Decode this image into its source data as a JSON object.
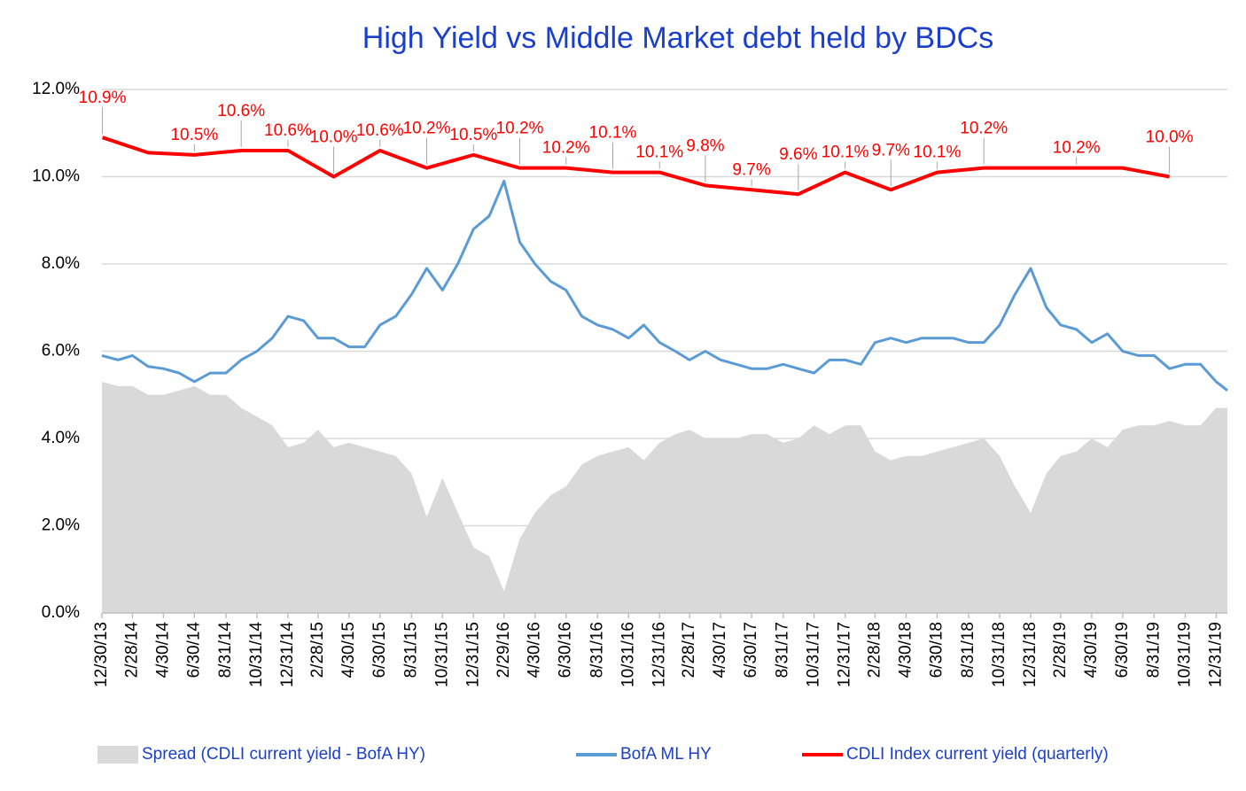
{
  "chart_data": {
    "type": "line",
    "title": "High Yield  vs  Middle Market debt held by BDCs",
    "x": [
      "12/30/13",
      "1/31/14",
      "2/28/14",
      "3/31/14",
      "4/30/14",
      "5/31/14",
      "6/30/14",
      "7/31/14",
      "8/31/14",
      "9/30/14",
      "10/31/14",
      "11/30/14",
      "12/31/14",
      "1/31/15",
      "2/28/15",
      "3/31/15",
      "4/30/15",
      "5/31/15",
      "6/30/15",
      "7/31/15",
      "8/31/15",
      "9/30/15",
      "10/31/15",
      "11/30/15",
      "12/31/15",
      "1/31/16",
      "2/29/16",
      "3/31/16",
      "4/30/16",
      "5/31/16",
      "6/30/16",
      "7/31/16",
      "8/31/16",
      "9/30/16",
      "10/31/16",
      "11/30/16",
      "12/31/16",
      "1/31/17",
      "2/28/17",
      "3/31/17",
      "4/30/17",
      "5/31/17",
      "6/30/17",
      "7/31/17",
      "8/31/17",
      "9/30/17",
      "10/31/17",
      "11/30/17",
      "12/31/17",
      "1/31/18",
      "2/28/18",
      "3/31/18",
      "4/30/18",
      "5/31/18",
      "6/30/18",
      "7/31/18",
      "8/31/18",
      "9/30/18",
      "10/31/18",
      "11/30/18",
      "12/31/18",
      "1/31/19",
      "2/28/19",
      "3/31/19",
      "4/30/19",
      "5/31/19",
      "6/30/19",
      "7/31/19",
      "8/31/19",
      "9/30/19",
      "10/31/19",
      "11/30/19",
      "12/31/19",
      "1/22/20"
    ],
    "series": [
      {
        "name": "Spread (CDLI current yield - BofA HY)",
        "type": "area",
        "color": "#d9d9d9",
        "values": [
          5.3,
          5.2,
          5.2,
          5.0,
          5.0,
          5.1,
          5.2,
          5.0,
          5.0,
          4.7,
          4.5,
          4.3,
          3.8,
          3.9,
          4.2,
          3.8,
          3.9,
          3.8,
          3.7,
          3.6,
          3.2,
          2.2,
          3.1,
          2.3,
          1.5,
          1.3,
          0.5,
          1.7,
          2.3,
          2.7,
          2.9,
          3.4,
          3.6,
          3.7,
          3.8,
          3.5,
          3.9,
          4.1,
          4.2,
          4.0,
          4.0,
          4.0,
          4.1,
          4.1,
          3.9,
          4.0,
          4.3,
          4.1,
          4.3,
          4.3,
          3.7,
          3.5,
          3.6,
          3.6,
          3.7,
          3.8,
          3.9,
          4.0,
          3.6,
          2.9,
          2.3,
          3.2,
          3.6,
          3.7,
          4.0,
          3.8,
          4.2,
          4.3,
          4.3,
          4.4,
          4.3,
          4.3,
          4.7,
          4.7
        ]
      },
      {
        "name": "BofA ML HY",
        "type": "line",
        "color": "#5b9bd5",
        "values": [
          5.9,
          5.8,
          5.9,
          5.65,
          5.6,
          5.5,
          5.3,
          5.5,
          5.5,
          5.8,
          6.0,
          6.3,
          6.8,
          6.7,
          6.3,
          6.3,
          6.1,
          6.1,
          6.6,
          6.8,
          7.3,
          7.9,
          7.4,
          8.0,
          8.8,
          9.1,
          9.9,
          8.5,
          8.0,
          7.6,
          7.4,
          6.8,
          6.6,
          6.5,
          6.3,
          6.6,
          6.2,
          6.0,
          5.8,
          6.0,
          5.8,
          5.7,
          5.6,
          5.6,
          5.7,
          5.6,
          5.5,
          5.8,
          5.8,
          5.7,
          6.2,
          6.3,
          6.2,
          6.3,
          6.3,
          6.3,
          6.2,
          6.2,
          6.6,
          7.3,
          7.9,
          7.0,
          6.6,
          6.5,
          6.2,
          6.4,
          6.0,
          5.9,
          5.9,
          5.6,
          5.7,
          5.7,
          5.3,
          5.1
        ]
      },
      {
        "name": "CDLI Index current yield (quarterly)",
        "type": "line",
        "color": "#ff0000",
        "x": [
          "12/31/13",
          "3/31/14",
          "6/30/14",
          "9/30/14",
          "12/31/14",
          "3/31/15",
          "6/30/15",
          "9/30/15",
          "12/31/15",
          "3/31/16",
          "6/30/16",
          "9/30/16",
          "12/31/16",
          "3/31/17",
          "6/30/17",
          "9/30/17",
          "12/31/17",
          "3/31/18",
          "6/30/18",
          "9/30/18",
          "12/31/18",
          "3/31/19",
          "6/30/19",
          "9/30/19"
        ],
        "values": [
          10.9,
          10.55,
          10.5,
          10.6,
          10.6,
          10.0,
          10.6,
          10.2,
          10.5,
          10.2,
          10.2,
          10.1,
          10.1,
          9.8,
          9.7,
          9.6,
          10.1,
          9.7,
          10.1,
          10.2,
          10.2,
          10.2,
          10.2,
          10.0
        ],
        "value_labels": [
          "10.9%",
          null,
          "10.5%",
          "10.6%",
          "10.6%",
          "10.0%",
          "10.6%",
          "10.2%",
          "10.5%",
          "10.2%",
          "10.2%",
          "10.1%",
          "10.1%",
          "9.8%",
          "9.7%",
          "9.6%",
          "10.1%",
          "9.7%",
          "10.1%",
          "10.2%",
          null,
          "10.2%",
          null,
          "10.0%"
        ]
      }
    ],
    "xlim": [
      "12/30/13",
      "1/22/20"
    ],
    "xticks": [
      "12/30/13",
      "2/28/14",
      "4/30/14",
      "6/30/14",
      "8/31/14",
      "10/31/14",
      "12/31/14",
      "2/28/15",
      "4/30/15",
      "6/30/15",
      "8/31/15",
      "10/31/15",
      "12/31/15",
      "2/29/16",
      "4/30/16",
      "6/30/16",
      "8/31/16",
      "10/31/16",
      "12/31/16",
      "2/28/17",
      "4/30/17",
      "6/30/17",
      "8/31/17",
      "10/31/17",
      "12/31/17",
      "2/28/18",
      "4/30/18",
      "6/30/18",
      "8/31/18",
      "10/31/18",
      "12/31/18",
      "2/28/19",
      "4/30/19",
      "6/30/19",
      "8/31/19",
      "10/31/19",
      "12/31/19"
    ],
    "ylim": [
      0,
      12
    ],
    "yticks": [
      {
        "value": 0,
        "label": "0.0%"
      },
      {
        "value": 2,
        "label": "2.0%"
      },
      {
        "value": 4,
        "label": "4.0%"
      },
      {
        "value": 6,
        "label": "6.0%"
      },
      {
        "value": 8,
        "label": "8.0%"
      },
      {
        "value": 10,
        "label": "10.0%"
      },
      {
        "value": 12,
        "label": "12.0%"
      }
    ],
    "grid": true
  }
}
